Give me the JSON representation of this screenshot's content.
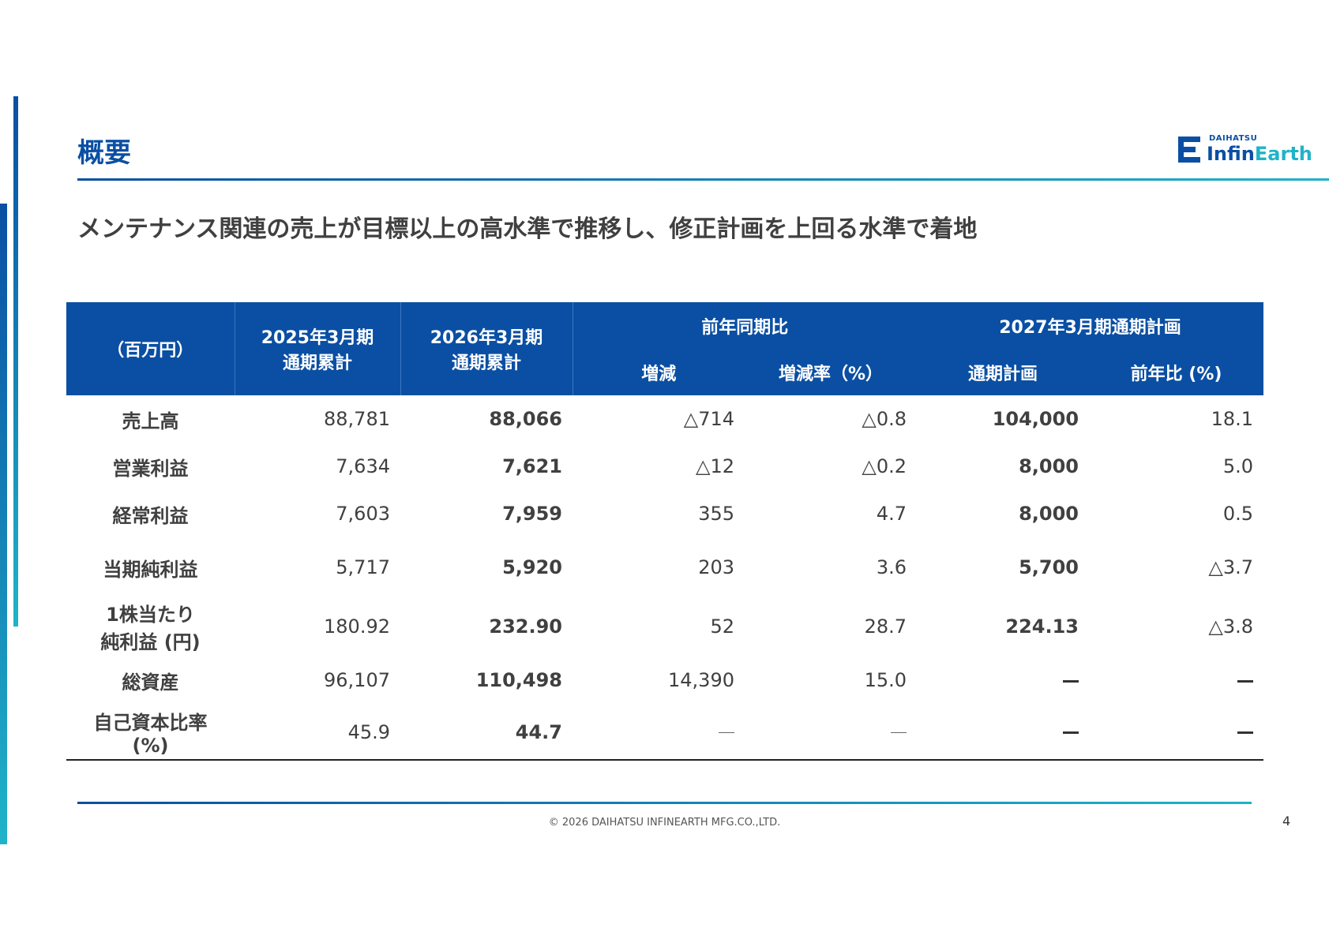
{
  "page_title": "概要",
  "logo": {
    "sub": "DAIHATSU",
    "main_a": "Infin",
    "main_b": "Earth"
  },
  "subtitle": "メンテナンス関連の売上が目標以上の高水準で推移し、修正計画を上回る水準で着地",
  "table": {
    "unit": "（百万円）",
    "col_2025": [
      "2025年3月期",
      "通期累計"
    ],
    "col_2026": [
      "2026年3月期",
      "通期累計"
    ],
    "group_yoy": "前年同期比",
    "group_plan": "2027年3月期通期計画",
    "sub_change": "増減",
    "sub_change_rate": "増減率（%）",
    "sub_plan": "通期計画",
    "sub_plan_yoy": "前年比 (%)",
    "rows": [
      {
        "label": [
          "売上高"
        ],
        "v2025": "88,781",
        "v2026": "88,066",
        "change": "△714",
        "rate": "△0.8",
        "plan": "104,000",
        "plan_yoy": "18.1"
      },
      {
        "label": [
          "営業利益"
        ],
        "v2025": "7,634",
        "v2026": "7,621",
        "change": "△12",
        "rate": "△0.2",
        "plan": "8,000",
        "plan_yoy": "5.0"
      },
      {
        "label": [
          "経常利益"
        ],
        "v2025": "7,603",
        "v2026": "7,959",
        "change": "355",
        "rate": "4.7",
        "plan": "8,000",
        "plan_yoy": "0.5"
      },
      {
        "label": [
          "当期純利益"
        ],
        "v2025": "5,717",
        "v2026": "5,920",
        "change": "203",
        "rate": "3.6",
        "plan": "5,700",
        "plan_yoy": "△3.7"
      },
      {
        "label": [
          "1株当たり",
          "純利益 (円)"
        ],
        "v2025": "180.92",
        "v2026": "232.90",
        "change": "52",
        "rate": "28.7",
        "plan": "224.13",
        "plan_yoy": "△3.8"
      },
      {
        "label": [
          "総資産"
        ],
        "v2025": "96,107",
        "v2026": "110,498",
        "change": "14,390",
        "rate": "15.0",
        "plan": "",
        "plan_yoy": ""
      },
      {
        "label": [
          "自己資本比率",
          "(%)"
        ],
        "v2025": "45.9",
        "v2026": "44.7",
        "change": "",
        "rate": "",
        "plan": "",
        "plan_yoy": ""
      }
    ]
  },
  "footer": {
    "copyright": "© 2026 DAIHATSU INFINEARTH MFG.CO.,LTD.",
    "page": "4"
  },
  "colors": {
    "primary": "#0a4fa3",
    "accent": "#1fb3c8"
  }
}
